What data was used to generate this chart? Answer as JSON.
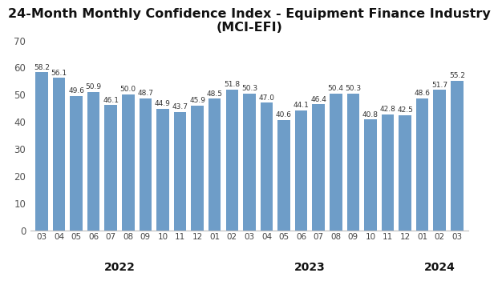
{
  "title_line1": "24-Month Monthly Confidence Index - Equipment Finance Industry",
  "title_line2": "(MCI-EFI)",
  "categories": [
    "03",
    "04",
    "05",
    "06",
    "07",
    "08",
    "09",
    "10",
    "11",
    "12",
    "01",
    "02",
    "03",
    "04",
    "05",
    "06",
    "07",
    "08",
    "09",
    "10",
    "11",
    "12",
    "01",
    "02",
    "03"
  ],
  "values": [
    58.2,
    56.1,
    49.6,
    50.9,
    46.1,
    50.0,
    48.7,
    44.9,
    43.7,
    45.9,
    48.5,
    51.8,
    50.3,
    47.0,
    40.6,
    44.1,
    46.4,
    50.4,
    50.3,
    40.8,
    42.8,
    42.5,
    48.6,
    51.7,
    55.2
  ],
  "year_info": [
    {
      "label": "2022",
      "start": 0,
      "end": 9
    },
    {
      "label": "2023",
      "start": 10,
      "end": 21
    },
    {
      "label": "2024",
      "start": 22,
      "end": 24
    }
  ],
  "bar_color": "#6e9dc8",
  "background_color": "#ffffff",
  "ylim": [
    0,
    70
  ],
  "yticks": [
    0,
    10,
    20,
    30,
    40,
    50,
    60,
    70
  ],
  "value_fontsize": 6.5,
  "title_fontsize": 11.5,
  "year_label_fontsize": 10,
  "tick_label_fontsize": 7.5
}
